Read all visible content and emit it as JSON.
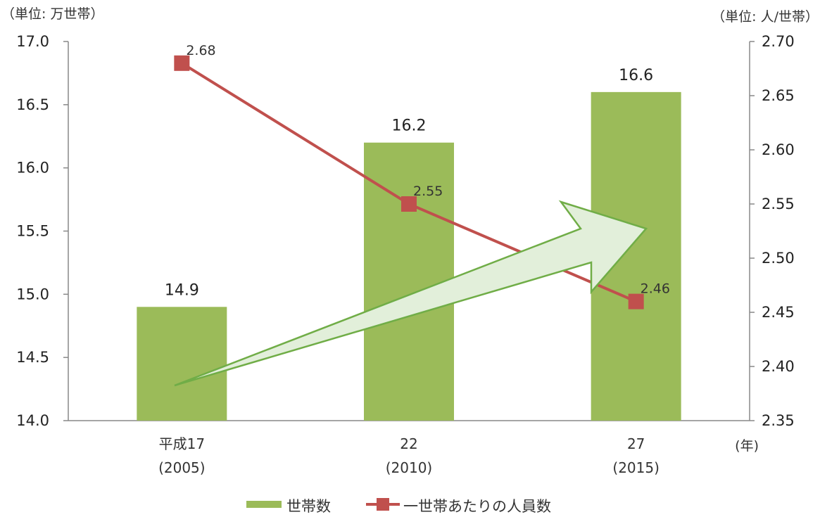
{
  "chart_data": {
    "type": "bar",
    "categories": [
      {
        "line1": "平成17",
        "line2": "(2005)"
      },
      {
        "line1": "22",
        "line2": "(2010)"
      },
      {
        "line1": "27",
        "line2": "(2015)"
      }
    ],
    "series": [
      {
        "name": "世帯数",
        "type": "bar",
        "axis": "left",
        "values": [
          14.9,
          16.2,
          16.6
        ],
        "labels": [
          "14.9",
          "16.2",
          "16.6"
        ],
        "color": "#9bbb59"
      },
      {
        "name": "一世帯あたりの人員数",
        "type": "line",
        "axis": "right",
        "values": [
          2.68,
          2.55,
          2.46
        ],
        "labels": [
          "2.68",
          "2.55",
          "2.46"
        ],
        "color": "#c0504d"
      }
    ],
    "y_left": {
      "unit_label": "（単位: 万世帯）",
      "range": [
        14.0,
        17.0
      ],
      "ticks": [
        "14.0",
        "14.5",
        "15.0",
        "15.5",
        "16.0",
        "16.5",
        "17.0"
      ]
    },
    "y_right": {
      "unit_label": "（単位: 人/世帯）",
      "range": [
        2.35,
        2.7
      ],
      "ticks": [
        "2.35",
        "2.40",
        "2.45",
        "2.50",
        "2.55",
        "2.60",
        "2.65",
        "2.70"
      ]
    },
    "x_unit_label": "(年)",
    "grid": false,
    "legend_position": "bottom",
    "annotation": {
      "type": "arrow",
      "description": "upward trend arrow",
      "fill": "#e2efda",
      "stroke": "#70ad47"
    }
  }
}
